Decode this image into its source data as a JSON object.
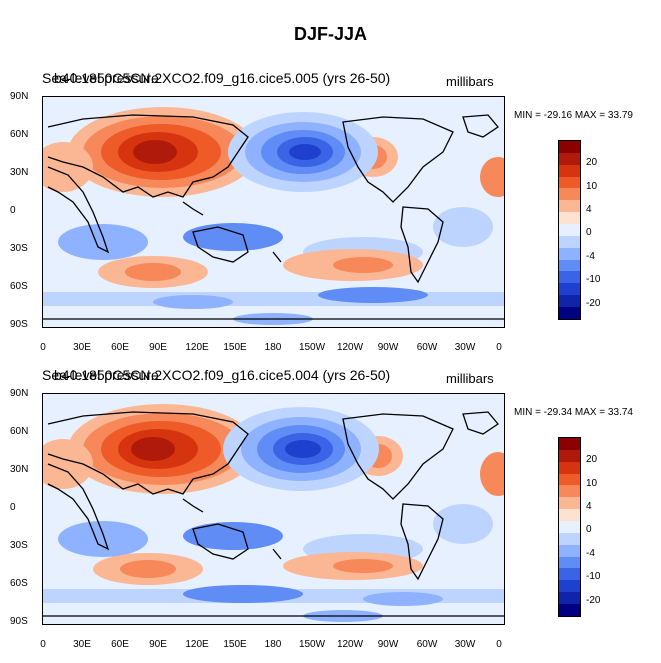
{
  "main_title": "DJF-JJA",
  "panels": [
    {
      "title_a": "Sea-level pressure",
      "title_b": "b40.1850C5CN.2XCO2.f09_g16.cice5.005 (yrs 26-50)",
      "units": "millibars",
      "minmax": "MIN = -29.16 MAX =  33.79"
    },
    {
      "title_a": "Sea-level pressure",
      "title_b": "b40.1850C5CN.2XCO2.f09_g16.cice5.004 (yrs 26-50)",
      "units": "millibars",
      "minmax": "MIN = -29.34 MAX =  33.74"
    }
  ],
  "lat_labels": [
    "90N",
    "60N",
    "30N",
    "0",
    "30S",
    "60S",
    "90S"
  ],
  "lon_labels": [
    "0",
    "30E",
    "60E",
    "90E",
    "120E",
    "150E",
    "180",
    "150W",
    "120W",
    "90W",
    "60W",
    "30W",
    "0"
  ],
  "colorbar": {
    "labels": [
      "20",
      "10",
      "4",
      "0",
      "-4",
      "-10",
      "-20"
    ],
    "colors": [
      "#8b0000",
      "#b01a0a",
      "#d6340f",
      "#ee5a28",
      "#f6885a",
      "#fbb694",
      "#fde2d2",
      "#e6f0ff",
      "#bcd4ff",
      "#8eb2ff",
      "#5f8cf5",
      "#3a63e6",
      "#1f3fcf",
      "#0f24a8",
      "#000080"
    ]
  },
  "chart_data": {
    "type": "heatmap",
    "field": "Sea-level pressure",
    "units": "millibars",
    "projection": "cylindrical equidistant",
    "lon_range": [
      0,
      360
    ],
    "lat_range": [
      -90,
      90
    ],
    "contour_levels": [
      -20,
      -10,
      -4,
      0,
      4,
      10,
      20
    ],
    "panels": [
      {
        "case": "b40.1850C5CN.2XCO2.f09_g16.cice5.005 (yrs 26-50)",
        "min": -29.16,
        "max": 33.79
      },
      {
        "case": "b40.1850C5CN.2XCO2.f09_g16.cice5.004 (yrs 26-50)",
        "min": -29.34,
        "max": 33.74
      }
    ]
  }
}
